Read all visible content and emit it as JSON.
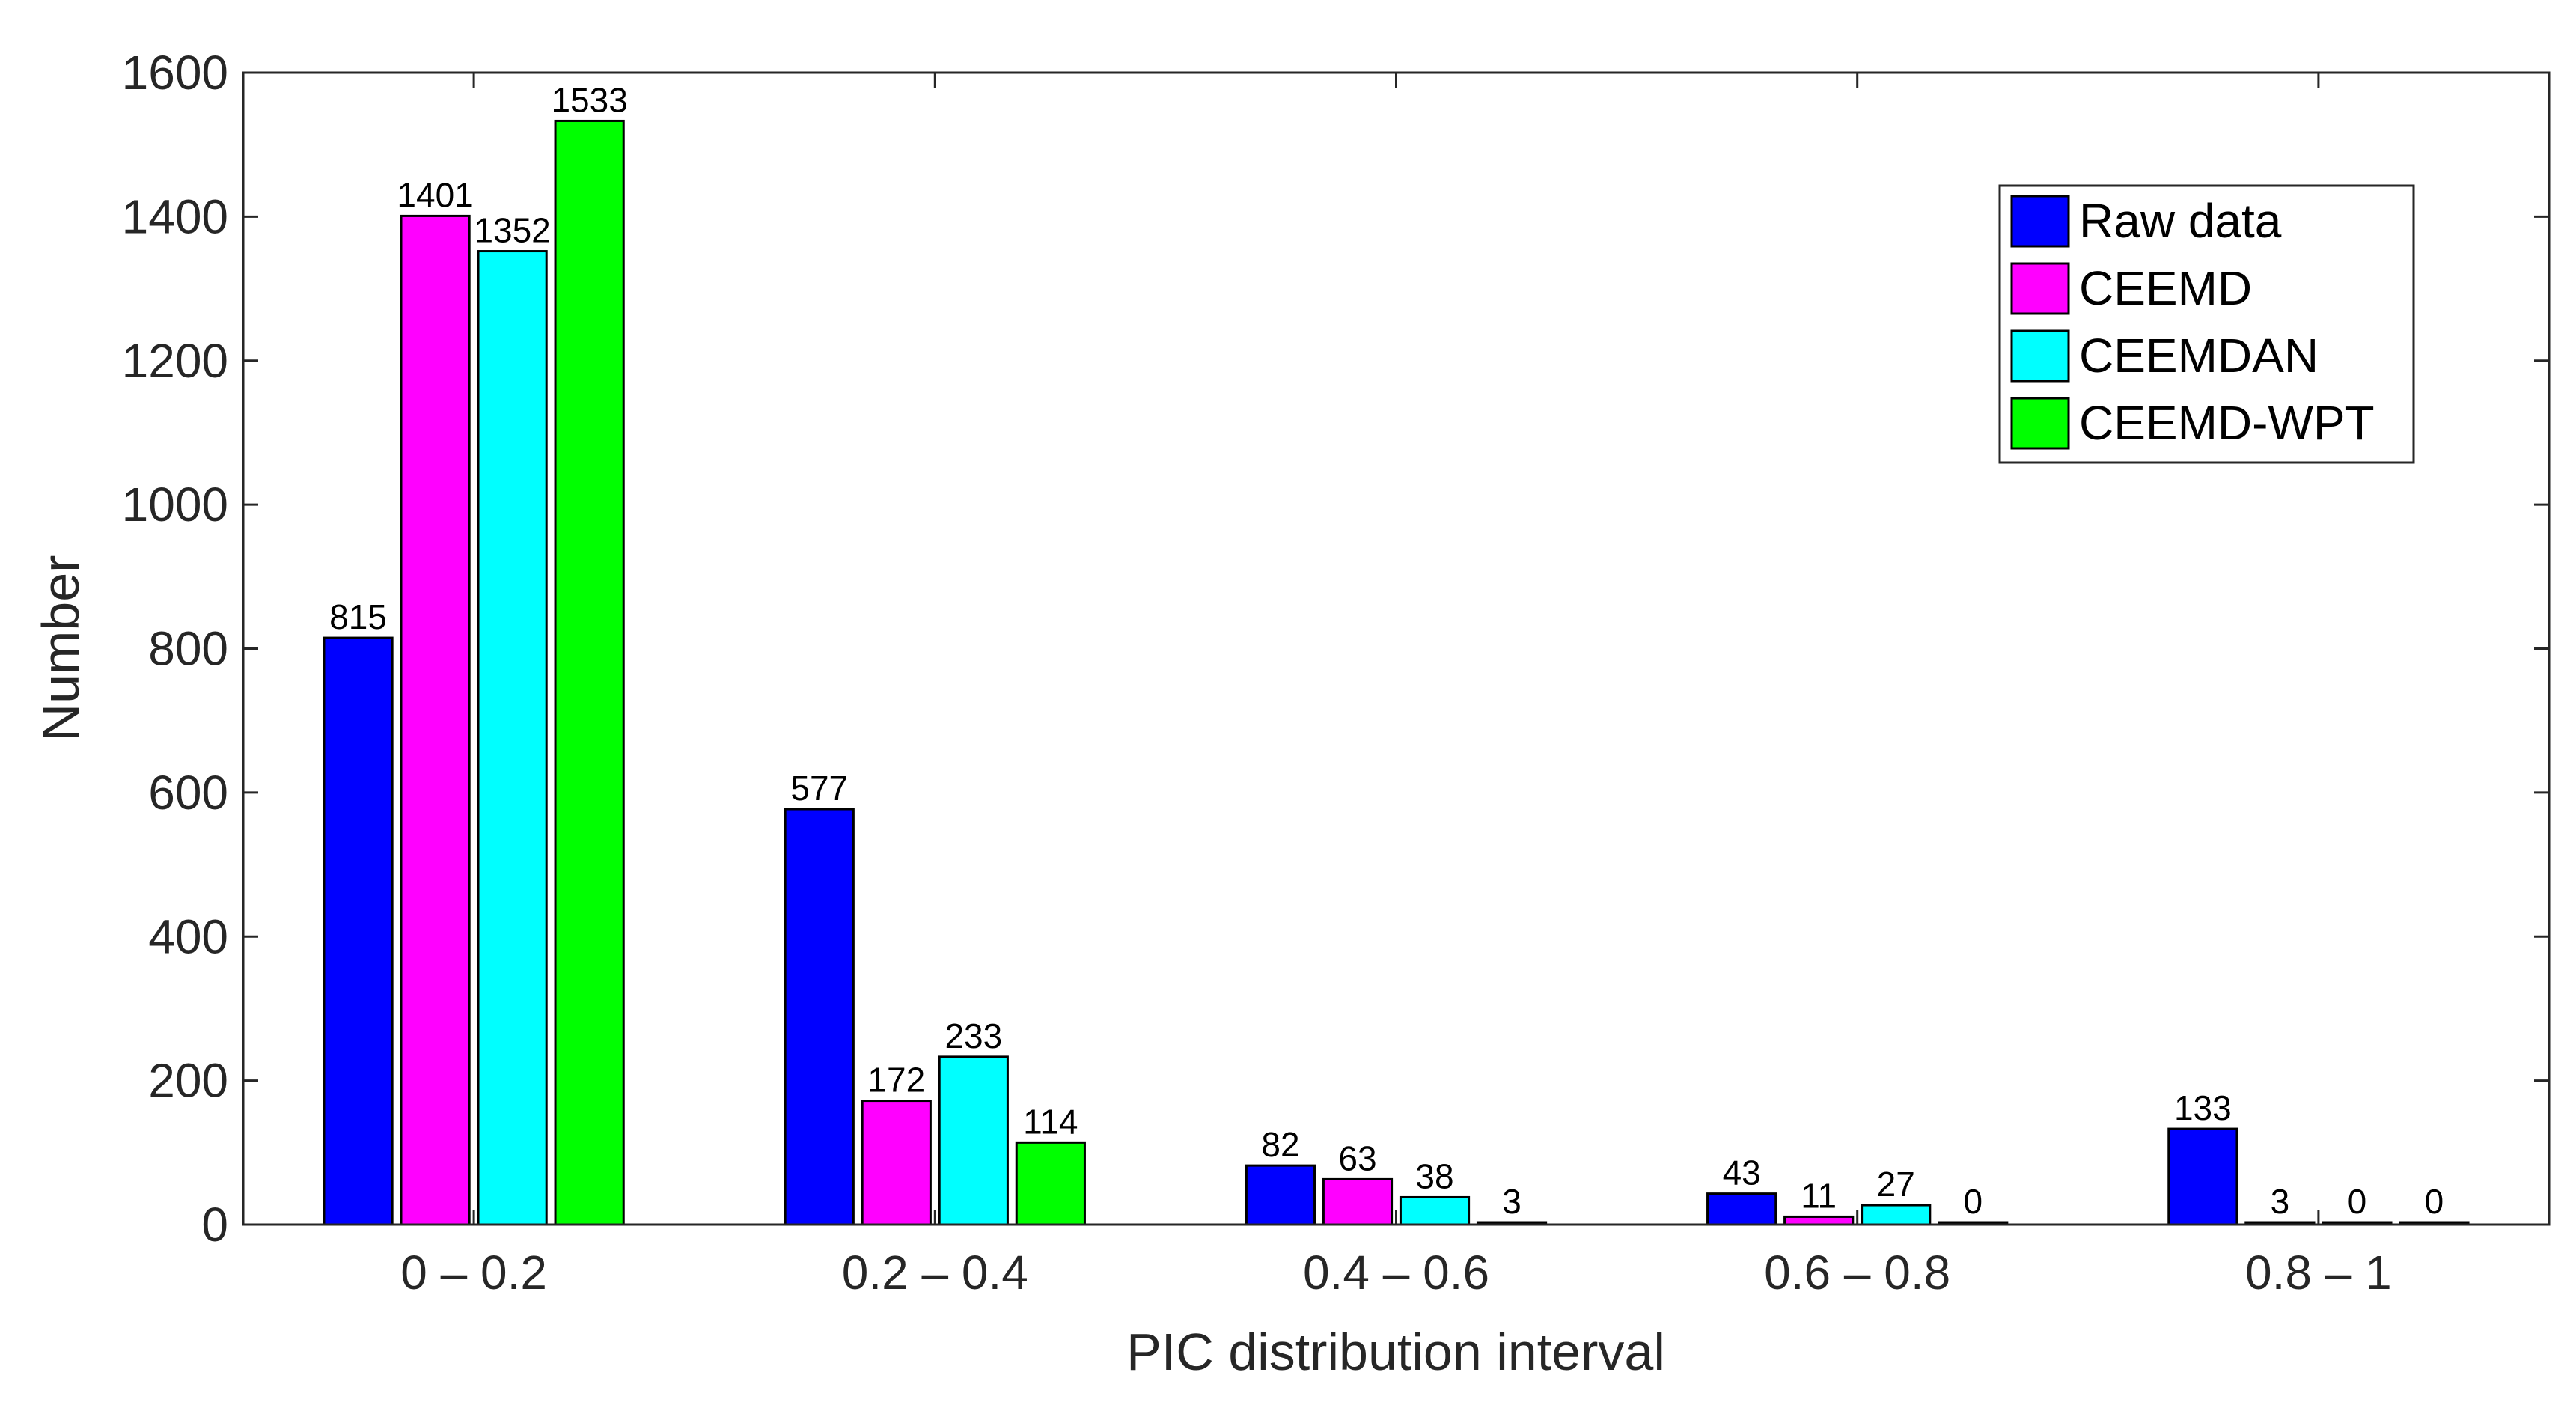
{
  "chart_data": {
    "type": "bar",
    "xlabel": "PIC distribution interval",
    "ylabel": "Number",
    "categories": [
      "0 – 0.2",
      "0.2 – 0.4",
      "0.4 – 0.6",
      "0.6 – 0.8",
      "0.8 – 1"
    ],
    "series": [
      {
        "name": "Raw data",
        "color": "#0000ff",
        "values": [
          815,
          577,
          82,
          43,
          133
        ]
      },
      {
        "name": "CEEMD",
        "color": "#ff00ff",
        "values": [
          1401,
          172,
          63,
          11,
          3
        ]
      },
      {
        "name": "CEEMDAN",
        "color": "#00ffff",
        "values": [
          1352,
          233,
          38,
          27,
          0
        ]
      },
      {
        "name": "CEEMD-WPT",
        "color": "#00ff00",
        "values": [
          1533,
          114,
          3,
          0,
          0
        ]
      }
    ],
    "ylim": [
      0,
      1600
    ],
    "yticks": [
      0,
      200,
      400,
      600,
      800,
      1000,
      1200,
      1400,
      1600
    ],
    "grid": false,
    "legend": "top-right",
    "data_labels": true
  }
}
